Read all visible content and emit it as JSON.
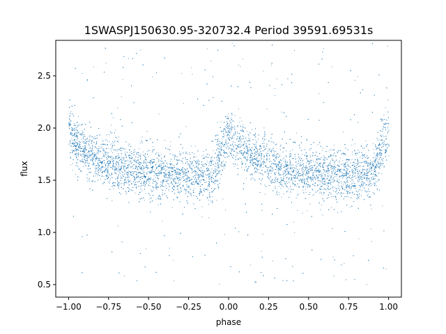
{
  "chart_data": {
    "type": "scatter",
    "title": "1SWASPJ150630.95-320732.4 Period 39591.69531s",
    "xlabel": "phase",
    "ylabel": "flux",
    "xlim": [
      -1.08,
      1.08
    ],
    "ylim": [
      0.38,
      2.84
    ],
    "x_ticks": [
      -1.0,
      -0.75,
      -0.5,
      -0.25,
      0.0,
      0.25,
      0.5,
      0.75,
      1.0
    ],
    "x_tick_labels": [
      "−1.00",
      "−0.75",
      "−0.50",
      "−0.25",
      "0.00",
      "0.25",
      "0.50",
      "0.75",
      "1.00"
    ],
    "y_ticks": [
      0.5,
      1.0,
      1.5,
      2.0,
      2.5
    ],
    "y_tick_labels": [
      "0.5",
      "1.0",
      "1.5",
      "2.0",
      "2.5"
    ],
    "grid": false,
    "marker_color": "#1f77b4",
    "series": [
      {
        "phase_range": [
          -1.0,
          1.0
        ],
        "profile": {
          "phase": [
            0.0,
            0.05,
            0.1,
            0.2,
            0.3,
            0.4,
            0.5,
            0.6,
            0.7,
            0.8,
            0.85,
            0.88,
            0.91,
            0.94,
            0.97,
            1.0
          ],
          "flux": [
            1.95,
            1.85,
            1.78,
            1.7,
            1.64,
            1.6,
            1.57,
            1.56,
            1.55,
            1.55,
            1.56,
            1.55,
            1.6,
            1.72,
            1.85,
            1.95
          ]
        },
        "scatter_sd": 0.12,
        "outlier_range": [
          0.5,
          2.82
        ]
      }
    ]
  }
}
